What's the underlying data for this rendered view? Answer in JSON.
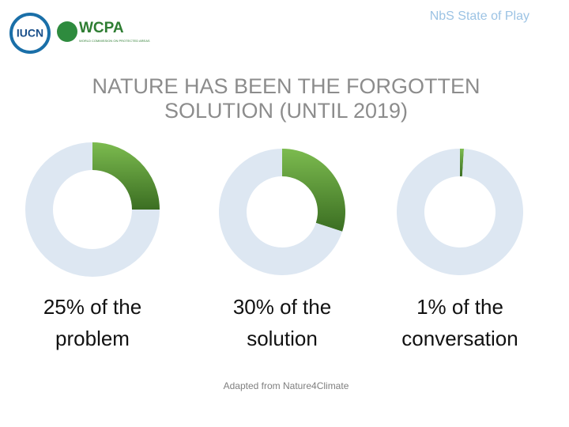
{
  "header": {
    "logo_text": "IUCN",
    "org_name": "WCPA",
    "org_subtitle": "WORLD COMMISSION ON PROTECTED AREAS",
    "section": "NbS State of Play"
  },
  "title_lines": [
    "NATURE HAS BEEN THE FORGOTTEN",
    "SOLUTION (UNTIL 2019)"
  ],
  "chart_data": [
    {
      "type": "donut",
      "values": [
        25,
        75
      ],
      "colors": [
        "#4f8a2e",
        "#dde7f2"
      ],
      "caption_lines": [
        "25% of the",
        "problem"
      ]
    },
    {
      "type": "donut",
      "values": [
        30,
        70
      ],
      "colors": [
        "#4f8a2e",
        "#dde7f2"
      ],
      "caption_lines": [
        "30% of the",
        "solution"
      ]
    },
    {
      "type": "donut",
      "values": [
        1,
        99
      ],
      "colors": [
        "#4f8a2e",
        "#dde7f2"
      ],
      "caption_lines": [
        "1% of the",
        "conversation"
      ]
    }
  ],
  "footer": "Adapted  from Nature4Climate"
}
